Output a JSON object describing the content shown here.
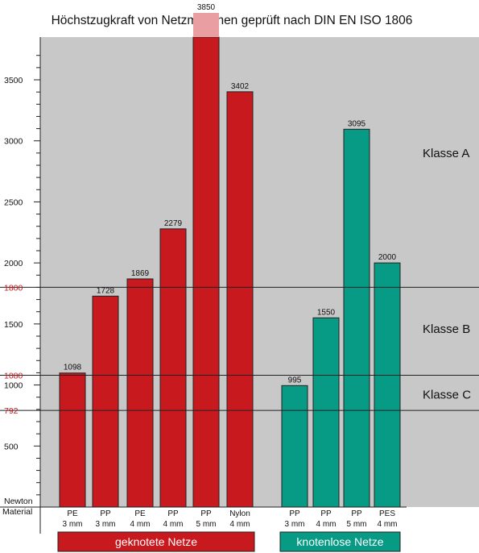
{
  "chart_data": {
    "type": "bar",
    "title": "Höchstzugkraft von Netzmaschen geprüft nach DIN EN ISO 1806",
    "ylabel": "Newton",
    "xlabel": "Material",
    "ylim": [
      0,
      3850
    ],
    "grid": false,
    "yticks": [
      {
        "value": 500,
        "label": "500"
      },
      {
        "value": 1000,
        "label": "1000"
      },
      {
        "value": 1500,
        "label": "1500"
      },
      {
        "value": 2000,
        "label": "2000"
      },
      {
        "value": 2500,
        "label": "2500"
      },
      {
        "value": 3000,
        "label": "3000"
      },
      {
        "value": 3500,
        "label": "3500"
      }
    ],
    "minor_tick_step": 100,
    "categories": [
      {
        "line1": "PE",
        "line2": "3 mm"
      },
      {
        "line1": "PP",
        "line2": "3 mm"
      },
      {
        "line1": "PE",
        "line2": "4 mm"
      },
      {
        "line1": "PP",
        "line2": "4 mm"
      },
      {
        "line1": "PP",
        "line2": "5 mm"
      },
      {
        "line1": "Nylon",
        "line2": "4 mm"
      },
      {
        "line1": "PP",
        "line2": "3 mm"
      },
      {
        "line1": "PP",
        "line2": "4 mm"
      },
      {
        "line1": "PP",
        "line2": "5 mm"
      },
      {
        "line1": "PES",
        "line2": "4 mm"
      }
    ],
    "values": [
      1098,
      1728,
      1869,
      2279,
      3850,
      3402,
      995,
      1550,
      3095,
      2000
    ],
    "value_labels": [
      "1098",
      "1728",
      "1869",
      "2279",
      "3850",
      "3402",
      "995",
      "1550",
      "3095",
      "2000"
    ],
    "groups": [
      {
        "label": "geknotete Netze",
        "color": "#c8191e",
        "bar_indices": [
          0,
          1,
          2,
          3,
          4,
          5
        ]
      },
      {
        "label": "knotenlose Netze",
        "color": "#079b85",
        "bar_indices": [
          6,
          7,
          8,
          9
        ]
      }
    ],
    "thresholds": [
      {
        "value": 1800,
        "label": "1800",
        "color": "#c8191e"
      },
      {
        "value": 1080,
        "label": "1080",
        "color": "#c8191e"
      },
      {
        "value": 792,
        "label": "792",
        "color": "#c8191e"
      }
    ],
    "class_labels": [
      {
        "label": "Klasse A",
        "value": 2900
      },
      {
        "label": "Klasse B",
        "value": 1460
      },
      {
        "label": "Klasse C",
        "value": 920
      }
    ],
    "plot_background": "#c8c8c8"
  }
}
